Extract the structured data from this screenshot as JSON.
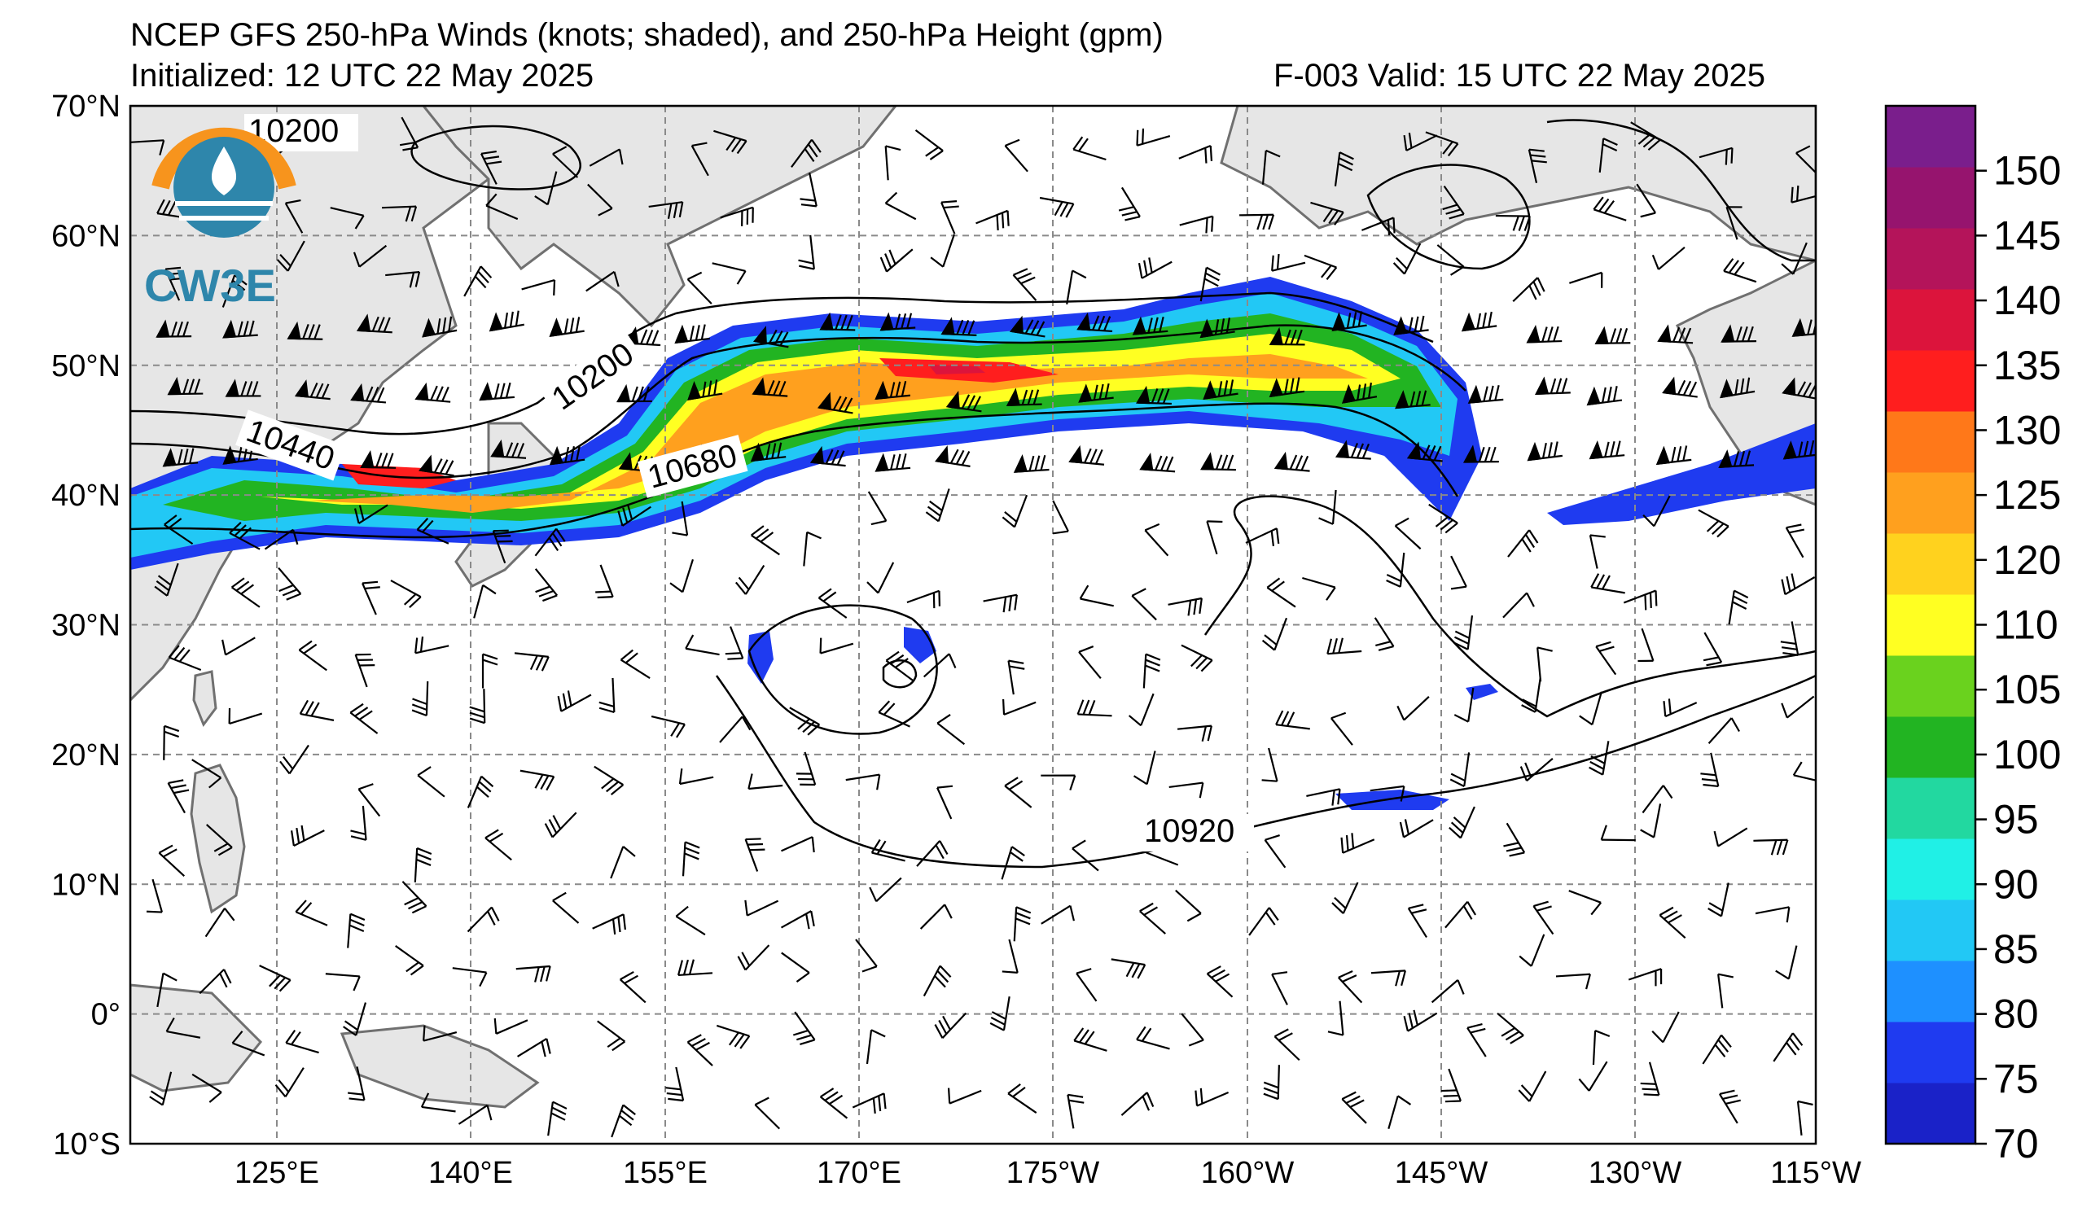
{
  "title": {
    "line1": "NCEP GFS 250-hPa Winds (knots; shaded), and 250-hPa Height (gpm)",
    "initialized": "Initialized: 12 UTC 22 May 2025",
    "valid": "F-003  Valid: 15 UTC 22 May 2025"
  },
  "logo": {
    "text": "CW3E",
    "ring_color": "#f7941d",
    "body_color": "#2e86ab"
  },
  "axes": {
    "lat_labels": [
      "70°N",
      "60°N",
      "50°N",
      "40°N",
      "30°N",
      "20°N",
      "10°N",
      "0°",
      "10°S"
    ],
    "lon_labels": [
      "125°E",
      "140°E",
      "155°E",
      "170°E",
      "175°W",
      "160°W",
      "145°W",
      "130°W",
      "115°W"
    ],
    "lat_range": [
      -10,
      70
    ],
    "lon_range": [
      115,
      245
    ],
    "grid": true
  },
  "contour_labels": [
    "10200",
    "10200",
    "10440",
    "10680",
    "10920"
  ],
  "colorbar": {
    "levels": [
      70,
      75,
      80,
      85,
      90,
      95,
      100,
      105,
      110,
      115,
      120,
      125,
      130,
      135,
      140,
      145,
      150,
      155
    ],
    "tick_labels": [
      "70",
      "75",
      "80",
      "85",
      "90",
      "95",
      "100",
      "105",
      "110",
      "120",
      "125",
      "130",
      "135",
      "140",
      "145",
      "150"
    ],
    "colors": [
      "#1a22c8",
      "#1f3bf0",
      "#1e90ff",
      "#22c8f5",
      "#20f0e6",
      "#22d8a0",
      "#22b422",
      "#6ad21e",
      "#ffff22",
      "#ffd21e",
      "#ffa01e",
      "#ff7819",
      "#ff1e1e",
      "#dc143c",
      "#b4145a",
      "#96146e",
      "#7a1e8c"
    ]
  },
  "colors": {
    "land": "#e6e6e6",
    "coast": "#707070",
    "grid": "#8a8a8a"
  }
}
